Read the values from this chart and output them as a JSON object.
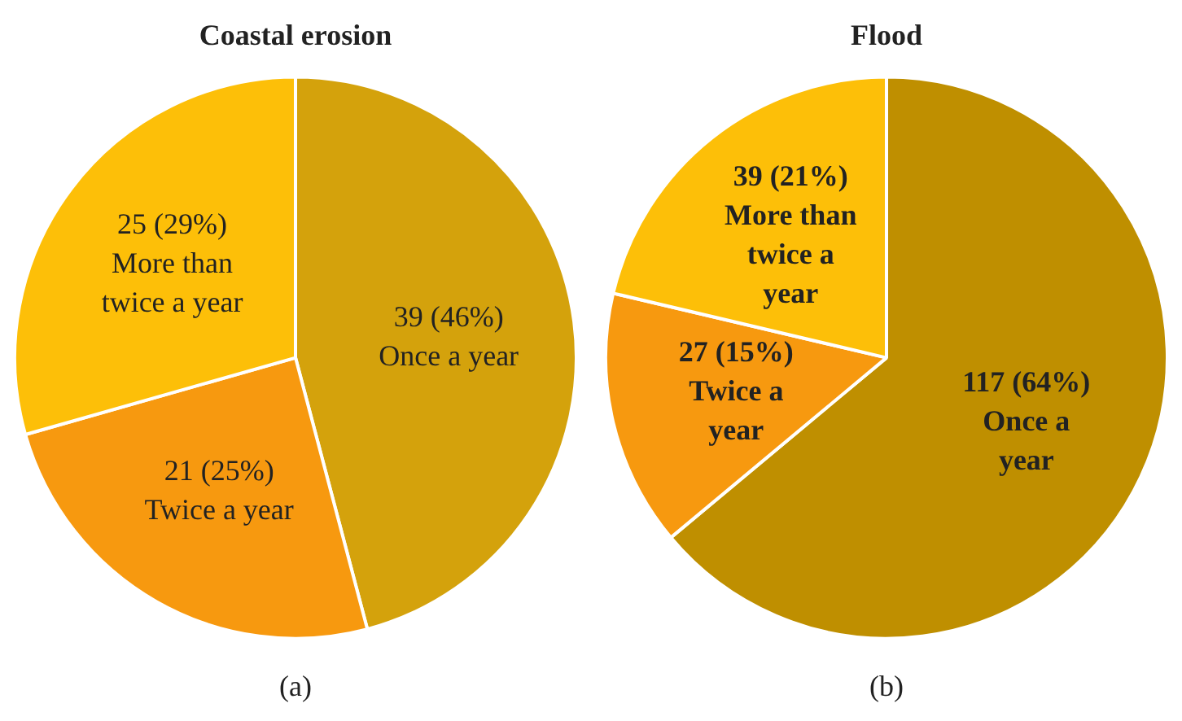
{
  "chart_data": [
    {
      "type": "pie",
      "title": "Coastal erosion",
      "categories": [
        "Once a year",
        "Twice a year",
        "More than twice a year"
      ],
      "values": [
        39,
        21,
        25
      ],
      "value_labels": [
        "39 (46%)",
        "21 (25%)",
        "25 (29%)"
      ],
      "colors": [
        "#d4a20c",
        "#f7990f",
        "#fdbf08"
      ],
      "legend": false,
      "annotations": [
        "(a)"
      ]
    },
    {
      "type": "pie",
      "title": "Flood",
      "categories": [
        "Once a year",
        "Twice a year",
        "More than twice a year"
      ],
      "values": [
        117,
        27,
        39
      ],
      "value_labels": [
        "117 (64%)",
        "27 (15%)",
        "39 (21%)"
      ],
      "colors": [
        "#bf8f00",
        "#f7990f",
        "#fdbf08"
      ],
      "legend": false,
      "annotations": [
        "(b)"
      ]
    }
  ]
}
